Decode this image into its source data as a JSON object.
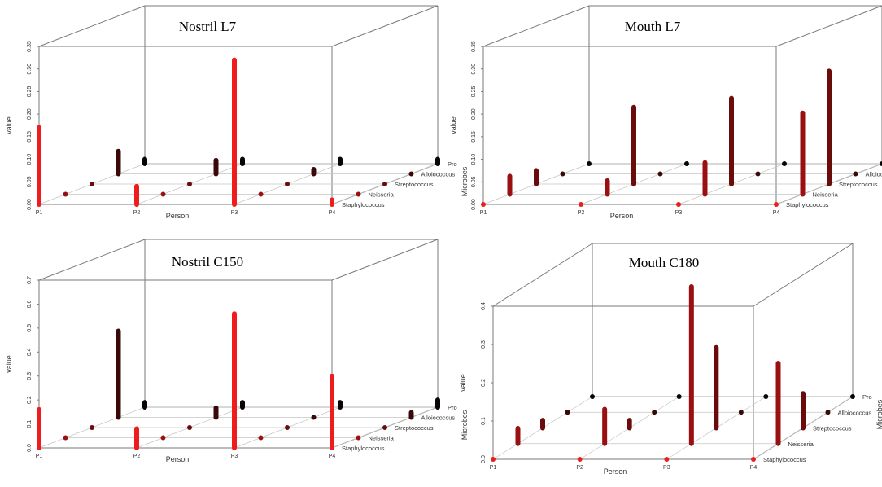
{
  "chart_data": [
    {
      "type": "3d-bar",
      "title": "Nostril L7",
      "xlabel": "Person",
      "ylabel": "value",
      "zlabel": "Microbes",
      "persons": [
        "P1",
        "P2",
        "P3",
        "P4"
      ],
      "microbes": [
        "Staphylococcus",
        "Neisseria",
        "Streptococcus",
        "Alloiococcus",
        "Pro"
      ],
      "ylim": [
        0,
        0.35
      ],
      "yticks": [
        "0.00",
        "0.05",
        "0.10",
        "0.15",
        "0.20",
        "0.25",
        "0.30",
        "0.35"
      ],
      "values": [
        [
          0.17,
          0.0,
          0.0,
          0.05,
          0.01
        ],
        [
          0.04,
          0.0,
          0.0,
          0.03,
          0.01
        ],
        [
          0.32,
          0.0,
          0.0,
          0.01,
          0.01
        ],
        [
          0.01,
          0.0,
          0.0,
          0.0,
          0.01
        ]
      ]
    },
    {
      "type": "3d-bar",
      "title": "Mouth L7",
      "xlabel": "Person",
      "ylabel": "value",
      "zlabel": "Microbes",
      "persons": [
        "P1",
        "P2",
        "P3",
        "P4"
      ],
      "microbes": [
        "Staphylococcus",
        "Neisseria",
        "Streptococcus",
        "Alloiococcus",
        "Pro"
      ],
      "ylim": [
        0,
        0.35
      ],
      "yticks": [
        "0.00",
        "0.05",
        "0.10",
        "0.15",
        "0.20",
        "0.25",
        "0.30",
        "0.35"
      ],
      "values": [
        [
          0.0,
          0.04,
          0.03,
          0.0,
          0.0
        ],
        [
          0.0,
          0.03,
          0.17,
          0.0,
          0.0
        ],
        [
          0.0,
          0.07,
          0.19,
          0.0,
          0.0
        ],
        [
          0.0,
          0.18,
          0.25,
          0.0,
          0.0
        ]
      ]
    },
    {
      "type": "3d-bar",
      "title": "Nostril C150",
      "xlabel": "Person",
      "ylabel": "value",
      "zlabel": "Microbes",
      "persons": [
        "P1",
        "P2",
        "P3",
        "P4"
      ],
      "microbes": [
        "Staphylococcus",
        "Neisseria",
        "Streptococcus",
        "Alloiococcus",
        "Pro"
      ],
      "ylim": [
        0,
        0.7
      ],
      "yticks": [
        "0.0",
        "0.1",
        "0.2",
        "0.3",
        "0.4",
        "0.5",
        "0.6",
        "0.7"
      ],
      "values": [
        [
          0.16,
          0.0,
          0.0,
          0.36,
          0.02
        ],
        [
          0.08,
          0.0,
          0.0,
          0.04,
          0.02
        ],
        [
          0.56,
          0.0,
          0.0,
          0.0,
          0.02
        ],
        [
          0.3,
          0.0,
          0.0,
          0.02,
          0.03
        ]
      ]
    },
    {
      "type": "3d-bar",
      "title": "Mouth C180",
      "xlabel": "Person",
      "ylabel": "value",
      "zlabel": "Microbes",
      "persons": [
        "P1",
        "P2",
        "P3",
        "P4"
      ],
      "microbes": [
        "Staphylococcus",
        "Neisseria",
        "Streptococcus",
        "Alloiococcus",
        "Pro"
      ],
      "ylim": [
        0,
        0.4
      ],
      "yticks": [
        "0.0",
        "0.1",
        "0.2",
        "0.3",
        "0.4"
      ],
      "values": [
        [
          0.0,
          0.04,
          0.02,
          0.0,
          0.0
        ],
        [
          0.0,
          0.09,
          0.02,
          0.0,
          0.0
        ],
        [
          0.0,
          0.41,
          0.21,
          0.0,
          0.0
        ],
        [
          0.0,
          0.21,
          0.09,
          0.0,
          0.0
        ]
      ]
    }
  ],
  "colors": {
    "Staphylococcus": "#ee1c1c",
    "Neisseria": "#9a1010",
    "Streptococcus": "#6a0c0c",
    "Alloiococcus": "#3a0808",
    "Pro": "#0a0404"
  }
}
